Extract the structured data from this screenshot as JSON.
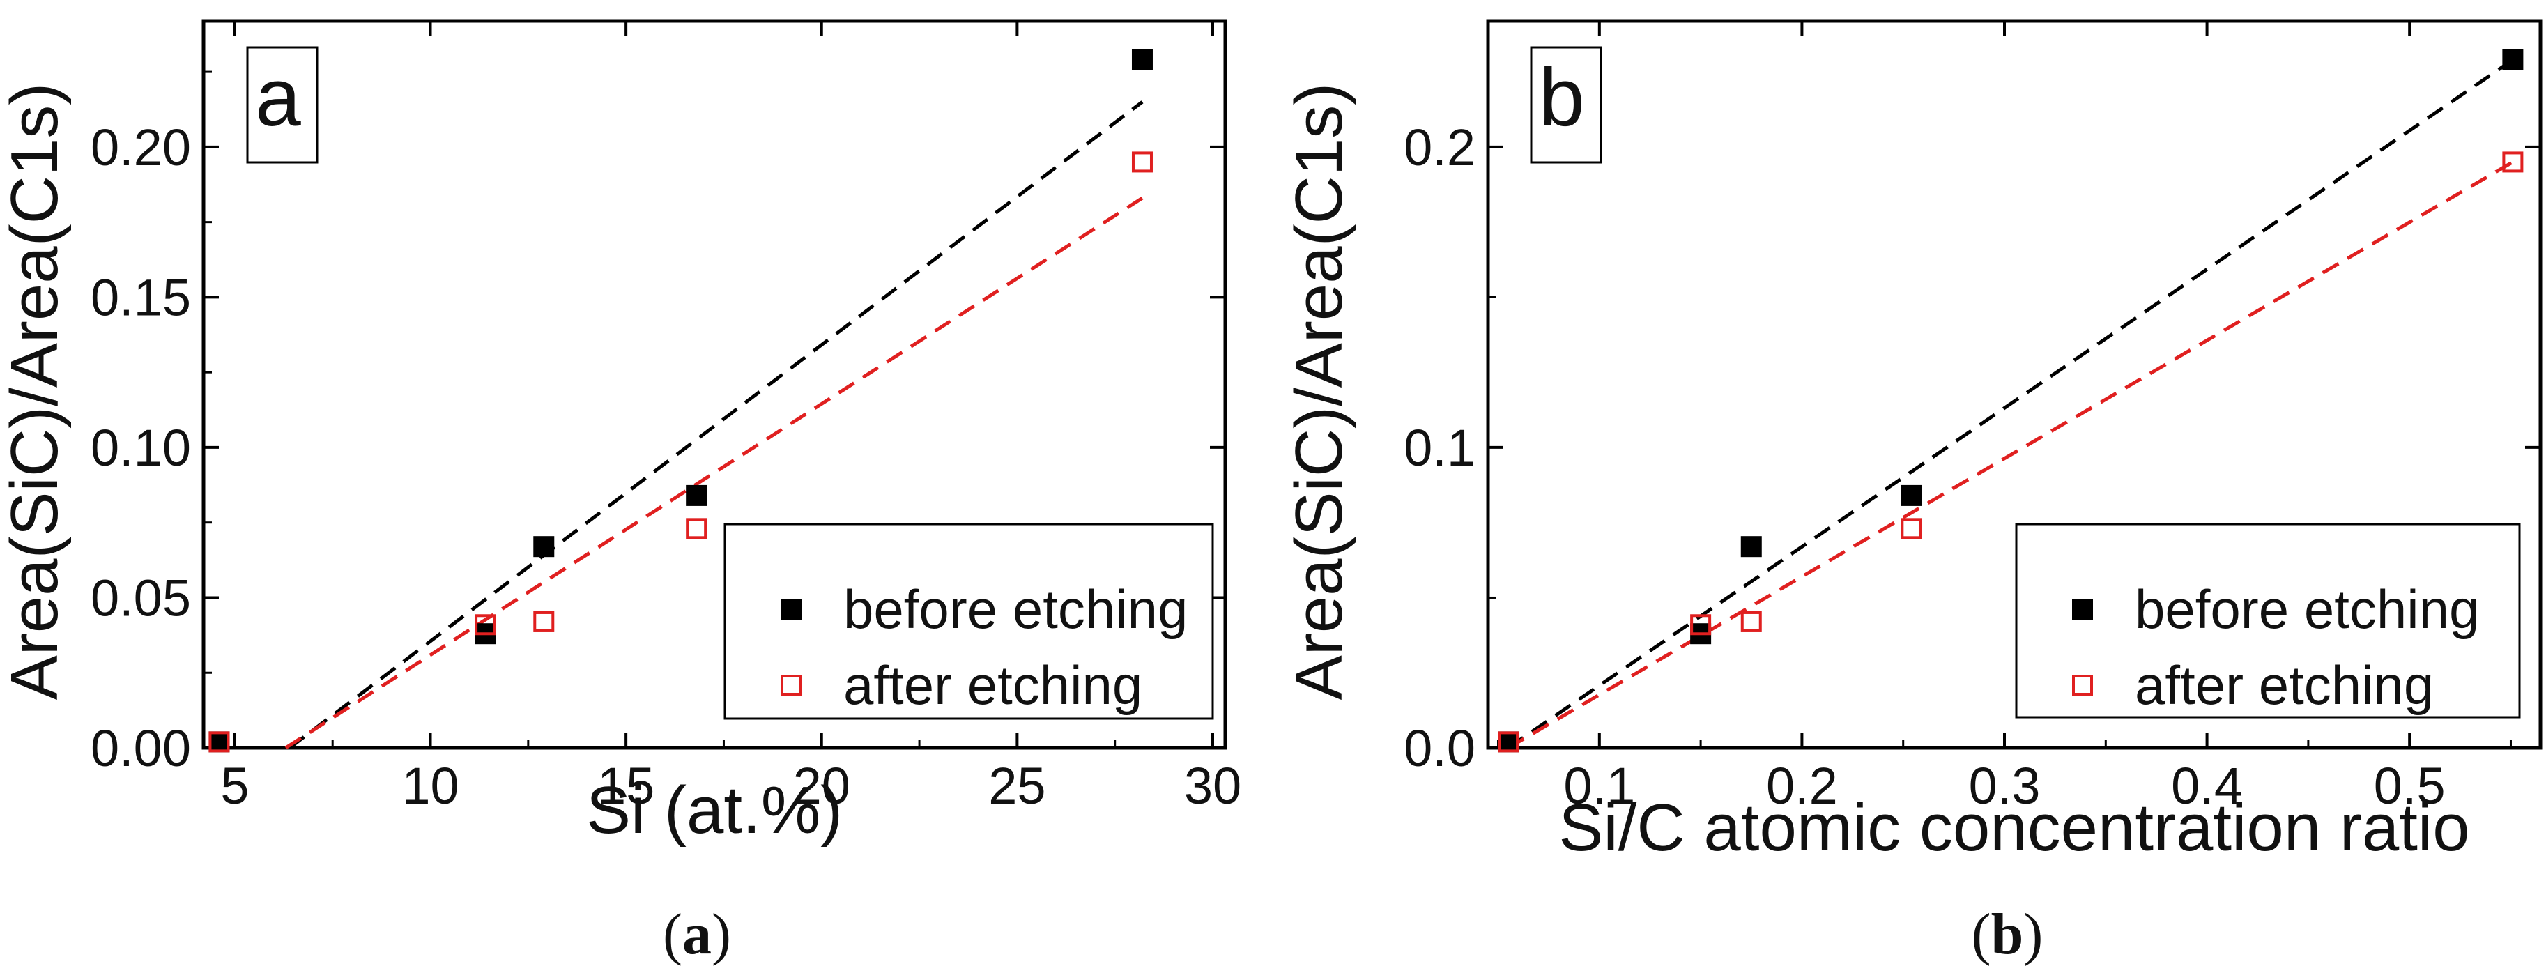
{
  "chart_data": [
    {
      "type": "scatter",
      "panel_label": "a",
      "caption": [
        "(",
        "a",
        ")"
      ],
      "xlabel": "Si (at.%)",
      "ylabel": "Area(SiC)/Area(C1s)",
      "xlim": [
        4.2,
        30
      ],
      "ylim": [
        0,
        0.235
      ],
      "xticks": [
        5,
        10,
        15,
        20,
        25,
        30
      ],
      "xtick_labels": [
        "5",
        "10",
        "15",
        "20",
        "25",
        "30"
      ],
      "yticks": [
        0,
        0.05,
        0.1,
        0.15,
        0.2
      ],
      "ytick_labels": [
        "0.00",
        "0.05",
        "0.10",
        "0.15",
        "0.20"
      ],
      "legend_position": "bottom-right",
      "series": [
        {
          "name": "before etching",
          "marker": "filled-square",
          "color": "#000000",
          "x": [
            4.6,
            11.4,
            12.9,
            16.8,
            28.2
          ],
          "y": [
            0.002,
            0.038,
            0.067,
            0.084,
            0.229
          ],
          "fit_line": {
            "x": [
              6.4,
              28.2
            ],
            "y": [
              0.0,
              0.215
            ]
          }
        },
        {
          "name": "after etching",
          "marker": "open-square",
          "color": "#e02020",
          "x": [
            4.6,
            11.4,
            12.9,
            16.8,
            28.2
          ],
          "y": [
            0.002,
            0.041,
            0.042,
            0.073,
            0.195
          ],
          "fit_line": {
            "x": [
              6.3,
              28.2
            ],
            "y": [
              0.0,
              0.183
            ]
          }
        }
      ]
    },
    {
      "type": "scatter",
      "panel_label": "b",
      "caption": [
        "(",
        "b",
        ")"
      ],
      "xlabel": "Si/C atomic concentration ratio",
      "ylabel": "Area(SiC)/Area(C1s)",
      "xlim": [
        0.045,
        0.555
      ],
      "ylim": [
        0,
        0.235
      ],
      "xticks": [
        0.1,
        0.2,
        0.3,
        0.4,
        0.5
      ],
      "xtick_labels": [
        "0.1",
        "0.2",
        "0.3",
        "0.4",
        "0.5"
      ],
      "yticks": [
        0,
        0.1,
        0.2
      ],
      "ytick_labels": [
        "0.0",
        "0.1",
        "0.2"
      ],
      "legend_position": "bottom-right",
      "series": [
        {
          "name": "before etching",
          "marker": "filled-square",
          "color": "#000000",
          "x": [
            0.055,
            0.15,
            0.175,
            0.254,
            0.551
          ],
          "y": [
            0.002,
            0.038,
            0.067,
            0.084,
            0.229
          ],
          "fit_line": {
            "x": [
              0.055,
              0.551
            ],
            "y": [
              0.0,
              0.229
            ]
          }
        },
        {
          "name": "after etching",
          "marker": "open-square",
          "color": "#e02020",
          "x": [
            0.055,
            0.15,
            0.175,
            0.254,
            0.551
          ],
          "y": [
            0.002,
            0.041,
            0.042,
            0.073,
            0.195
          ],
          "fit_line": {
            "x": [
              0.055,
              0.551
            ],
            "y": [
              0.0,
              0.195
            ]
          }
        }
      ]
    }
  ]
}
